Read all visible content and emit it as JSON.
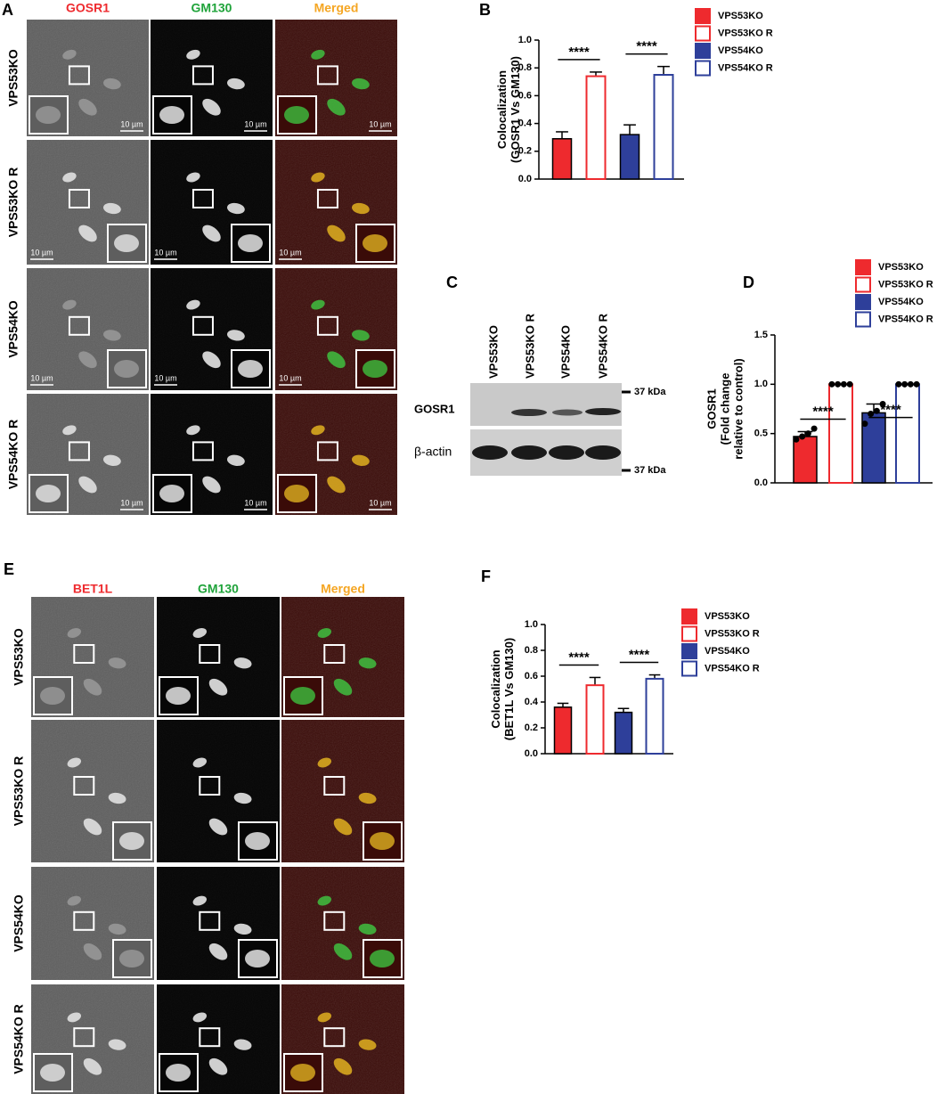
{
  "panel_labels": [
    "A",
    "B",
    "C",
    "D",
    "E",
    "F"
  ],
  "panel_a": {
    "columns": [
      "GOSR1",
      "GM130",
      "Merged"
    ],
    "rows": [
      "VPS53KO",
      "VPS53KO R",
      "VPS54KO",
      "VPS54KO R"
    ],
    "scale_bar": "10 µm"
  },
  "panel_c": {
    "lanes": [
      "VPS53KO",
      "VPS53KO R",
      "VPS54KO",
      "VPS54KO R"
    ],
    "bands": [
      "GOSR1",
      "β-actin"
    ],
    "markers": [
      "37 kDa",
      "37 kDa"
    ]
  },
  "panel_e": {
    "columns": [
      "BET1L",
      "GM130",
      "Merged"
    ],
    "rows": [
      "VPS53KO",
      "VPS53KO R",
      "VPS54KO",
      "VPS54KO R"
    ]
  },
  "chart_data": [
    {
      "type": "bar",
      "y_label": [
        "Colocalization",
        "(GOSR1 Vs GM130)"
      ],
      "ylim": [
        0,
        1
      ],
      "yticks": [
        {
          "value": 0,
          "label": "0.0"
        },
        0.2,
        0.4,
        0.6,
        0.8,
        {
          "value": 1,
          "label": "1.0"
        }
      ],
      "series": [
        {
          "name": "VPS53KO",
          "color": "#ee2a2e",
          "filled": true,
          "values": [
            0.29
          ],
          "errors": [
            0.05
          ]
        },
        {
          "name": "VPS53KO R",
          "color": "#ee2a2e",
          "filled": false,
          "values": [
            0.74
          ],
          "errors": [
            0.03
          ]
        },
        {
          "name": "VPS54KO",
          "color": "#2e3f9a",
          "filled": true,
          "values": [
            0.32
          ],
          "errors": [
            0.07
          ]
        },
        {
          "name": "VPS54KO R",
          "color": "#2e3f9a",
          "filled": false,
          "values": [
            0.75
          ],
          "errors": [
            0.06
          ]
        }
      ],
      "annotations": [
        "****",
        "****"
      ]
    },
    {
      "type": "bar",
      "y_label": [
        "GOSR1",
        "(Fold change",
        "relative to control)"
      ],
      "ylim": [
        0,
        1.5
      ],
      "yticks": [
        {
          "value": 0,
          "label": "0.0"
        },
        0.5,
        {
          "value": 1,
          "label": "1.0"
        },
        1.5
      ],
      "series": [
        {
          "name": "VPS53KO",
          "color": "#ee2a2e",
          "filled": true,
          "values": [
            0.47
          ],
          "errors": [
            0.05
          ],
          "points": [
            0.44,
            0.47,
            0.5,
            0.55
          ]
        },
        {
          "name": "VPS53KO R",
          "color": "#ee2a2e",
          "filled": false,
          "values": [
            1.0
          ],
          "errors": [
            0
          ],
          "points": [
            1,
            1,
            1,
            1
          ]
        },
        {
          "name": "VPS54KO",
          "color": "#2e3f9a",
          "filled": true,
          "values": [
            0.71
          ],
          "errors": [
            0.09
          ],
          "points": [
            0.6,
            0.7,
            0.73,
            0.8
          ]
        },
        {
          "name": "VPS54KO R",
          "color": "#2e3f9a",
          "filled": false,
          "values": [
            1.0
          ],
          "errors": [
            0
          ],
          "points": [
            1,
            1,
            1,
            1
          ]
        }
      ],
      "annotations": [
        "****",
        "****"
      ]
    },
    {
      "type": "bar",
      "y_label": [
        "Colocalization",
        "(BET1L Vs GM130)"
      ],
      "ylim": [
        0,
        1
      ],
      "yticks": [
        {
          "value": 0,
          "label": "0.0"
        },
        0.2,
        0.4,
        0.6,
        0.8,
        {
          "value": 1,
          "label": "1.0"
        }
      ],
      "series": [
        {
          "name": "VPS53KO",
          "color": "#ee2a2e",
          "filled": true,
          "values": [
            0.36
          ],
          "errors": [
            0.03
          ]
        },
        {
          "name": "VPS53KO R",
          "color": "#ee2a2e",
          "filled": false,
          "values": [
            0.53
          ],
          "errors": [
            0.06
          ]
        },
        {
          "name": "VPS54KO",
          "color": "#2e3f9a",
          "filled": true,
          "values": [
            0.32
          ],
          "errors": [
            0.03
          ]
        },
        {
          "name": "VPS54KO R",
          "color": "#2e3f9a",
          "filled": false,
          "values": [
            0.58
          ],
          "errors": [
            0.03
          ]
        }
      ],
      "annotations": [
        "****",
        "****"
      ]
    }
  ]
}
